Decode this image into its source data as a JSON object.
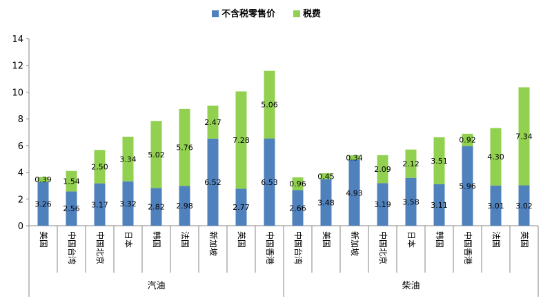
{
  "chart_data": {
    "type": "bar",
    "stacked": true,
    "ylim": [
      0,
      14
    ],
    "yticks": [
      0,
      2,
      4,
      6,
      8,
      10,
      12,
      14
    ],
    "legend_position": "top-center",
    "grid": false,
    "series": [
      {
        "name": "不含税零售价",
        "color": "#4F81BD"
      },
      {
        "name": "税费",
        "color": "#92D050"
      }
    ],
    "groups": [
      {
        "label": "汽油",
        "categories": [
          "美国",
          "中国台湾",
          "中国北京",
          "日本",
          "韩国",
          "法国",
          "新加坡",
          "英国",
          "中国香港"
        ],
        "base": [
          3.26,
          2.56,
          3.17,
          3.32,
          2.82,
          2.98,
          6.52,
          2.77,
          6.53
        ],
        "tax": [
          0.39,
          1.54,
          2.5,
          3.34,
          5.02,
          5.76,
          2.47,
          7.28,
          5.06
        ]
      },
      {
        "label": "柴油",
        "categories": [
          "中国台湾",
          "美国",
          "新加坡",
          "中国北京",
          "日本",
          "韩国",
          "中国香港",
          "法国",
          "英国"
        ],
        "base": [
          2.66,
          3.48,
          4.93,
          3.19,
          3.58,
          3.11,
          5.96,
          3.01,
          3.02
        ],
        "tax": [
          0.96,
          0.45,
          0.34,
          2.09,
          2.12,
          3.51,
          0.92,
          4.3,
          7.34
        ]
      }
    ]
  }
}
